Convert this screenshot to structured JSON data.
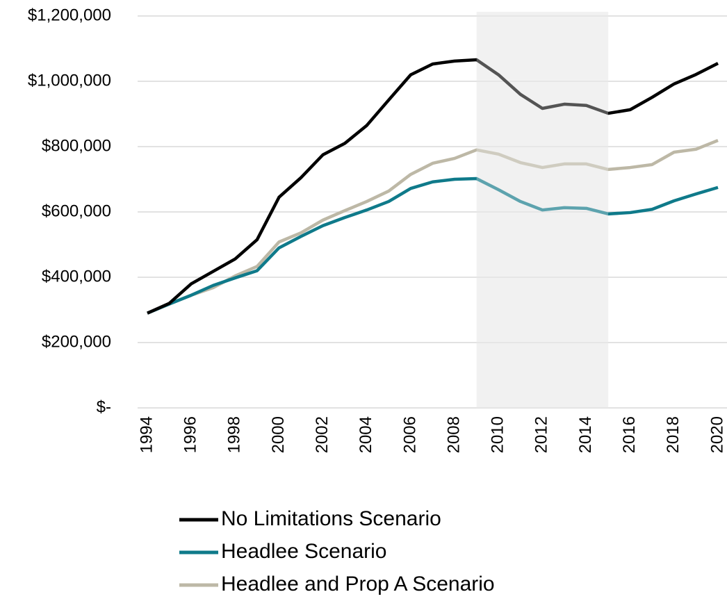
{
  "chart_data": {
    "type": "line",
    "x": [
      1994,
      1995,
      1996,
      1997,
      1998,
      1999,
      2000,
      2001,
      2002,
      2003,
      2004,
      2005,
      2006,
      2007,
      2008,
      2009,
      2010,
      2011,
      2012,
      2013,
      2014,
      2015,
      2016,
      2017,
      2018,
      2019,
      2020
    ],
    "series": [
      {
        "name": "No Limitations Scenario",
        "color": "#000000",
        "values": [
          290000,
          320000,
          380000,
          418000,
          456000,
          515000,
          645000,
          705000,
          775000,
          810000,
          865000,
          943000,
          1020000,
          1053000,
          1062000,
          1066000,
          1020000,
          960000,
          917000,
          930000,
          926000,
          902000,
          913000,
          951000,
          992000,
          1021000,
          1055000
        ]
      },
      {
        "name": "Headlee Scenario",
        "color": "#0f7a8a",
        "values": [
          290000,
          318000,
          345000,
          375000,
          398000,
          420000,
          490000,
          525000,
          558000,
          583000,
          606000,
          632000,
          672000,
          692000,
          700000,
          702000,
          668000,
          632000,
          606000,
          613000,
          611000,
          594000,
          598000,
          608000,
          634000,
          655000,
          675000
        ]
      },
      {
        "name": "Headlee and Prop A Scenario",
        "color": "#bdb8a6",
        "values": [
          290000,
          318000,
          345000,
          368000,
          404000,
          433000,
          508000,
          536000,
          575000,
          604000,
          632000,
          664000,
          715000,
          749000,
          764000,
          790000,
          777000,
          751000,
          736000,
          747000,
          747000,
          730000,
          736000,
          745000,
          783000,
          792000,
          819000
        ]
      }
    ],
    "xlim": [
      1994,
      2020
    ],
    "xticks": [
      1994,
      1996,
      1998,
      2000,
      2002,
      2004,
      2006,
      2008,
      2010,
      2012,
      2014,
      2016,
      2018,
      2020
    ],
    "ylim": [
      0,
      1200000
    ],
    "yticks": [
      {
        "value": 0,
        "label": "$-"
      },
      {
        "value": 200000,
        "label": "$200,000"
      },
      {
        "value": 400000,
        "label": "$400,000"
      },
      {
        "value": 600000,
        "label": "$600,000"
      },
      {
        "value": 800000,
        "label": "$800,000"
      },
      {
        "value": 1000000,
        "label": "$1,000,000"
      },
      {
        "value": 1200000,
        "label": "$1,200,000"
      }
    ],
    "grid": true,
    "shaded_range": [
      2009,
      2015
    ],
    "legend": "bottom"
  }
}
